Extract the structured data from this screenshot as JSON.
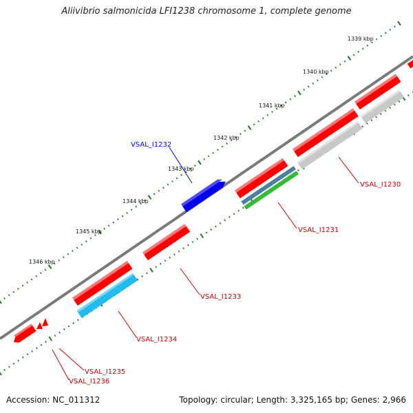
{
  "title": "Aliivibrio salmonicida LFI1238 chromosome 1, complete genome",
  "footer": {
    "accession": "Accession: NC_011312",
    "summary": "Topology: circular; Length: 3,325,165 bp; Genes: 2,966"
  },
  "colors": {
    "backbone": "#7a7a7a",
    "ticks": "#1e7a1e",
    "cds": "#ff0000",
    "cds_label": "#cc0000",
    "highlight": "#0000ee",
    "cyan": "#22bbee",
    "green": "#33bb33",
    "gray": "#c8c8c8",
    "steel": "#4f7fa0"
  },
  "scale_labels": [
    "1339 kbp",
    "1340 kbp",
    "1341 kbp",
    "1342 kbp",
    "1343 kbp",
    "1344 kbp",
    "1345 kbp",
    "1346 kbp"
  ],
  "gene_labels": {
    "VSAL_I1230": "VSAL_I1230",
    "VSAL_I1231": "VSAL_I1231",
    "VSAL_I1232": "VSAL_I1232",
    "VSAL_I1233": "VSAL_I1233",
    "VSAL_I1234": "VSAL_I1234",
    "VSAL_I1235": "VSAL_I1235",
    "VSAL_I1236": "VSAL_I1236"
  }
}
